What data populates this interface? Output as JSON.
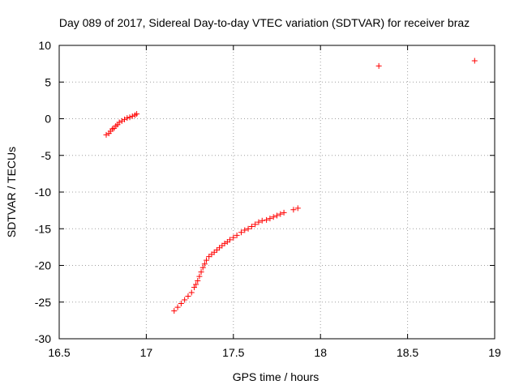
{
  "chart_data": {
    "type": "scatter",
    "title": "Day 089 of 2017, Sidereal Day-to-day VTEC variation (SDTVAR) for receiver braz",
    "xlabel": "GPS time / hours",
    "ylabel": "SDTVAR / TECUs",
    "xlim": [
      16.5,
      19
    ],
    "ylim": [
      -30,
      10
    ],
    "xticks": [
      "16.5",
      "17",
      "17.5",
      "18",
      "18.5",
      "19"
    ],
    "yticks": [
      "10",
      "5",
      "0",
      "-5",
      "-10",
      "-15",
      "-20",
      "-25",
      "-30"
    ],
    "grid": true,
    "legend": "none",
    "marker_color": "#ff0000",
    "series": [
      {
        "points": [
          [
            16.77,
            -2.2
          ],
          [
            16.785,
            -2.0
          ],
          [
            16.795,
            -1.7
          ],
          [
            16.805,
            -1.4
          ],
          [
            16.815,
            -1.3
          ],
          [
            16.825,
            -1.0
          ],
          [
            16.835,
            -0.8
          ],
          [
            16.845,
            -0.5
          ],
          [
            16.86,
            -0.3
          ],
          [
            16.875,
            -0.1
          ],
          [
            16.89,
            0.1
          ],
          [
            16.905,
            0.2
          ],
          [
            16.92,
            0.35
          ],
          [
            16.935,
            0.5
          ],
          [
            16.945,
            0.65
          ],
          [
            17.16,
            -26.2
          ],
          [
            17.18,
            -25.7
          ],
          [
            17.2,
            -25.2
          ],
          [
            17.22,
            -24.7
          ],
          [
            17.24,
            -24.2
          ],
          [
            17.26,
            -23.7
          ],
          [
            17.275,
            -23.0
          ],
          [
            17.285,
            -22.6
          ],
          [
            17.295,
            -22.1
          ],
          [
            17.305,
            -21.5
          ],
          [
            17.315,
            -20.9
          ],
          [
            17.325,
            -20.3
          ],
          [
            17.335,
            -19.8
          ],
          [
            17.345,
            -19.3
          ],
          [
            17.36,
            -18.8
          ],
          [
            17.375,
            -18.5
          ],
          [
            17.39,
            -18.2
          ],
          [
            17.405,
            -17.9
          ],
          [
            17.42,
            -17.6
          ],
          [
            17.435,
            -17.3
          ],
          [
            17.45,
            -17.0
          ],
          [
            17.465,
            -16.8
          ],
          [
            17.48,
            -16.5
          ],
          [
            17.5,
            -16.2
          ],
          [
            17.52,
            -15.9
          ],
          [
            17.545,
            -15.5
          ],
          [
            17.565,
            -15.2
          ],
          [
            17.585,
            -15.0
          ],
          [
            17.605,
            -14.7
          ],
          [
            17.625,
            -14.4
          ],
          [
            17.645,
            -14.1
          ],
          [
            17.665,
            -13.9
          ],
          [
            17.69,
            -13.8
          ],
          [
            17.71,
            -13.6
          ],
          [
            17.73,
            -13.4
          ],
          [
            17.75,
            -13.2
          ],
          [
            17.77,
            -13.0
          ],
          [
            17.79,
            -12.8
          ],
          [
            17.845,
            -12.4
          ],
          [
            17.87,
            -12.2
          ],
          [
            18.335,
            7.2
          ],
          [
            18.885,
            7.9
          ]
        ]
      }
    ]
  }
}
